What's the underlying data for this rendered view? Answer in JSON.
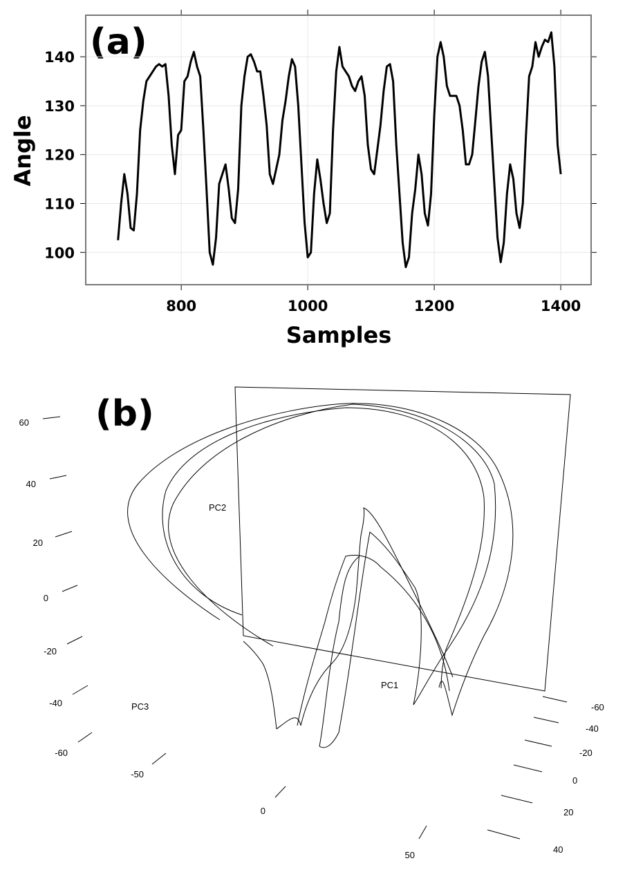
{
  "chart_data": {
    "type": "line",
    "panel_label": "(a)",
    "x_label": "Samples",
    "y_label": "Angle",
    "color": "#000000",
    "grid": true,
    "xlim": [
      649,
      1448
    ],
    "ylim": [
      93.4,
      148.5
    ],
    "xticks": [
      800,
      1000,
      1200,
      1400
    ],
    "yticks": [
      100,
      110,
      120,
      130,
      140
    ],
    "x": [
      700,
      705,
      710,
      715,
      720,
      725,
      730,
      735,
      740,
      745,
      750,
      755,
      760,
      765,
      770,
      775,
      780,
      785,
      790,
      795,
      800,
      805,
      810,
      815,
      820,
      825,
      830,
      835,
      840,
      845,
      850,
      855,
      860,
      865,
      870,
      875,
      880,
      885,
      890,
      895,
      900,
      905,
      910,
      915,
      920,
      925,
      930,
      935,
      940,
      945,
      950,
      955,
      960,
      965,
      970,
      975,
      980,
      985,
      990,
      995,
      1000,
      1005,
      1010,
      1015,
      1020,
      1025,
      1030,
      1035,
      1040,
      1045,
      1050,
      1055,
      1060,
      1065,
      1070,
      1075,
      1080,
      1085,
      1090,
      1095,
      1100,
      1105,
      1110,
      1115,
      1120,
      1125,
      1130,
      1135,
      1140,
      1145,
      1150,
      1155,
      1160,
      1165,
      1170,
      1175,
      1180,
      1185,
      1190,
      1195,
      1200,
      1205,
      1210,
      1215,
      1220,
      1225,
      1230,
      1235,
      1240,
      1245,
      1250,
      1255,
      1260,
      1265,
      1270,
      1275,
      1280,
      1285,
      1290,
      1295,
      1300,
      1305,
      1310,
      1315,
      1320,
      1325,
      1330,
      1335,
      1340,
      1345,
      1350,
      1355,
      1360,
      1365,
      1370,
      1375,
      1380,
      1385,
      1390,
      1395,
      1400
    ],
    "values": [
      102.5,
      110,
      116,
      112,
      105,
      104.5,
      112,
      125,
      131,
      135,
      136,
      137,
      138,
      138.5,
      138,
      138.5,
      132,
      122,
      116,
      124,
      125,
      135,
      136,
      139,
      141,
      138,
      136,
      125,
      113,
      100,
      97.5,
      103,
      114,
      116,
      118,
      113,
      107,
      106,
      113,
      130,
      136,
      140,
      140.5,
      139,
      137,
      137,
      132,
      126,
      116,
      114,
      117,
      120,
      127,
      131,
      136,
      139.5,
      138,
      130,
      118,
      106,
      99,
      100,
      112,
      119,
      115,
      110,
      106,
      108,
      125,
      137,
      142,
      138,
      137,
      136,
      134,
      133,
      135,
      136,
      132,
      122,
      117,
      116,
      121,
      126,
      133,
      138,
      138.5,
      135,
      122,
      112,
      102,
      97,
      99,
      108,
      113,
      120,
      116,
      108,
      105.5,
      112,
      128,
      140,
      143,
      140,
      134,
      132,
      132,
      132,
      130,
      125,
      118,
      118,
      120,
      127,
      134,
      139,
      141,
      136,
      125,
      114,
      103,
      98,
      102,
      112,
      118,
      115,
      108,
      105,
      110,
      124,
      136,
      138,
      143,
      140,
      142,
      143.5,
      143,
      145,
      138,
      122,
      116
    ]
  },
  "panel_b": {
    "panel_label": "(b)",
    "axis_labels": [
      "PC2",
      "PC1",
      "PC3"
    ],
    "left_ticks": [
      60,
      40,
      20,
      0,
      -20,
      -40,
      -60
    ],
    "bottom_ticks": [
      -50,
      0,
      50
    ],
    "right_ticks": [
      -60,
      -40,
      -20,
      0,
      20,
      40
    ]
  }
}
